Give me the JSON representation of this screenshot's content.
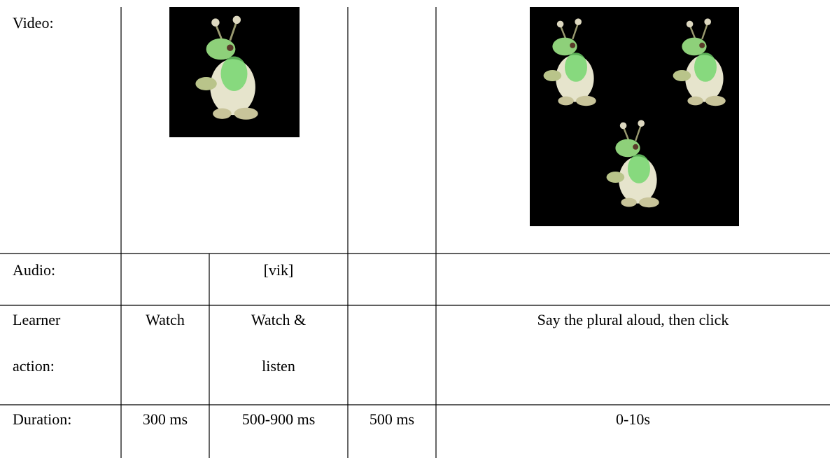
{
  "table": {
    "rows": [
      {
        "header": "Video:"
      },
      {
        "header": "Audio:",
        "cells": {
          "col2": "[vik]"
        }
      },
      {
        "header": [
          "Learner",
          "action:"
        ],
        "cells": {
          "col1": "Watch",
          "col2": [
            "Watch &",
            "listen"
          ],
          "col4": "Say the plural aloud, then click"
        }
      },
      {
        "header": "Duration:",
        "cells": {
          "col1": "300 ms",
          "col2": "500-900 ms",
          "col3": "500 ms",
          "col4": "0-10s"
        }
      }
    ]
  }
}
